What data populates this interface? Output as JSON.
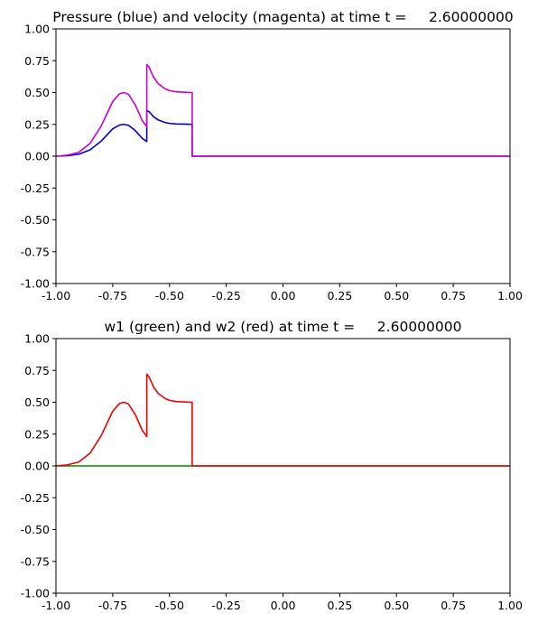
{
  "chart_data": [
    {
      "type": "line",
      "title": "Pressure (blue) and velocity (magenta) at time t =     2.60000000",
      "xlim": [
        -1.0,
        1.0
      ],
      "ylim": [
        -1.0,
        1.0
      ],
      "xticks": [
        "-1.00",
        "-0.75",
        "-0.50",
        "-0.25",
        "0.00",
        "0.25",
        "0.50",
        "0.75",
        "1.00"
      ],
      "yticks": [
        "-1.00",
        "-0.75",
        "-0.50",
        "-0.25",
        "0.00",
        "0.25",
        "0.50",
        "0.75",
        "1.00"
      ],
      "grid": false,
      "series": [
        {
          "color": "#0000cc",
          "x": [
            -1.0,
            -0.95,
            -0.9,
            -0.85,
            -0.8,
            -0.75,
            -0.72,
            -0.7,
            -0.68,
            -0.65,
            -0.62,
            -0.6,
            -0.6,
            -0.59,
            -0.57,
            -0.55,
            -0.52,
            -0.5,
            -0.47,
            -0.44,
            -0.42,
            -0.4,
            -0.4,
            1.0
          ],
          "y": [
            0.0,
            0.004,
            0.015,
            0.05,
            0.12,
            0.215,
            0.245,
            0.25,
            0.242,
            0.2,
            0.14,
            0.115,
            0.36,
            0.35,
            0.31,
            0.285,
            0.265,
            0.258,
            0.253,
            0.252,
            0.251,
            0.25,
            0.0,
            0.0
          ]
        },
        {
          "color": "#cc00cc",
          "x": [
            -1.0,
            -0.95,
            -0.9,
            -0.85,
            -0.8,
            -0.75,
            -0.72,
            -0.7,
            -0.68,
            -0.65,
            -0.62,
            -0.6,
            -0.6,
            -0.59,
            -0.57,
            -0.55,
            -0.52,
            -0.5,
            -0.47,
            -0.44,
            -0.42,
            -0.4,
            -0.4,
            1.0
          ],
          "y": [
            0.0,
            0.008,
            0.03,
            0.1,
            0.24,
            0.43,
            0.49,
            0.5,
            0.485,
            0.4,
            0.28,
            0.23,
            0.72,
            0.7,
            0.62,
            0.57,
            0.53,
            0.515,
            0.506,
            0.503,
            0.501,
            0.5,
            0.0,
            0.0
          ]
        }
      ]
    },
    {
      "type": "line",
      "title": "w1 (green) and w2 (red) at time t =     2.60000000",
      "xlim": [
        -1.0,
        1.0
      ],
      "ylim": [
        -1.0,
        1.0
      ],
      "xticks": [
        "-1.00",
        "-0.75",
        "-0.50",
        "-0.25",
        "0.00",
        "0.25",
        "0.50",
        "0.75",
        "1.00"
      ],
      "yticks": [
        "-1.00",
        "-0.75",
        "-0.50",
        "-0.25",
        "0.00",
        "0.25",
        "0.50",
        "0.75",
        "1.00"
      ],
      "grid": false,
      "series": [
        {
          "color": "#008800",
          "x": [
            -1.0,
            1.0
          ],
          "y": [
            0.0,
            0.0
          ]
        },
        {
          "color": "#ee0000",
          "x": [
            -1.0,
            -0.95,
            -0.9,
            -0.85,
            -0.8,
            -0.75,
            -0.72,
            -0.7,
            -0.68,
            -0.65,
            -0.62,
            -0.6,
            -0.6,
            -0.59,
            -0.57,
            -0.55,
            -0.52,
            -0.5,
            -0.47,
            -0.44,
            -0.42,
            -0.4,
            -0.4,
            1.0
          ],
          "y": [
            0.0,
            0.008,
            0.03,
            0.1,
            0.24,
            0.43,
            0.49,
            0.5,
            0.485,
            0.4,
            0.28,
            0.23,
            0.72,
            0.7,
            0.62,
            0.57,
            0.53,
            0.515,
            0.506,
            0.503,
            0.501,
            0.5,
            0.0,
            0.0
          ]
        }
      ]
    }
  ]
}
